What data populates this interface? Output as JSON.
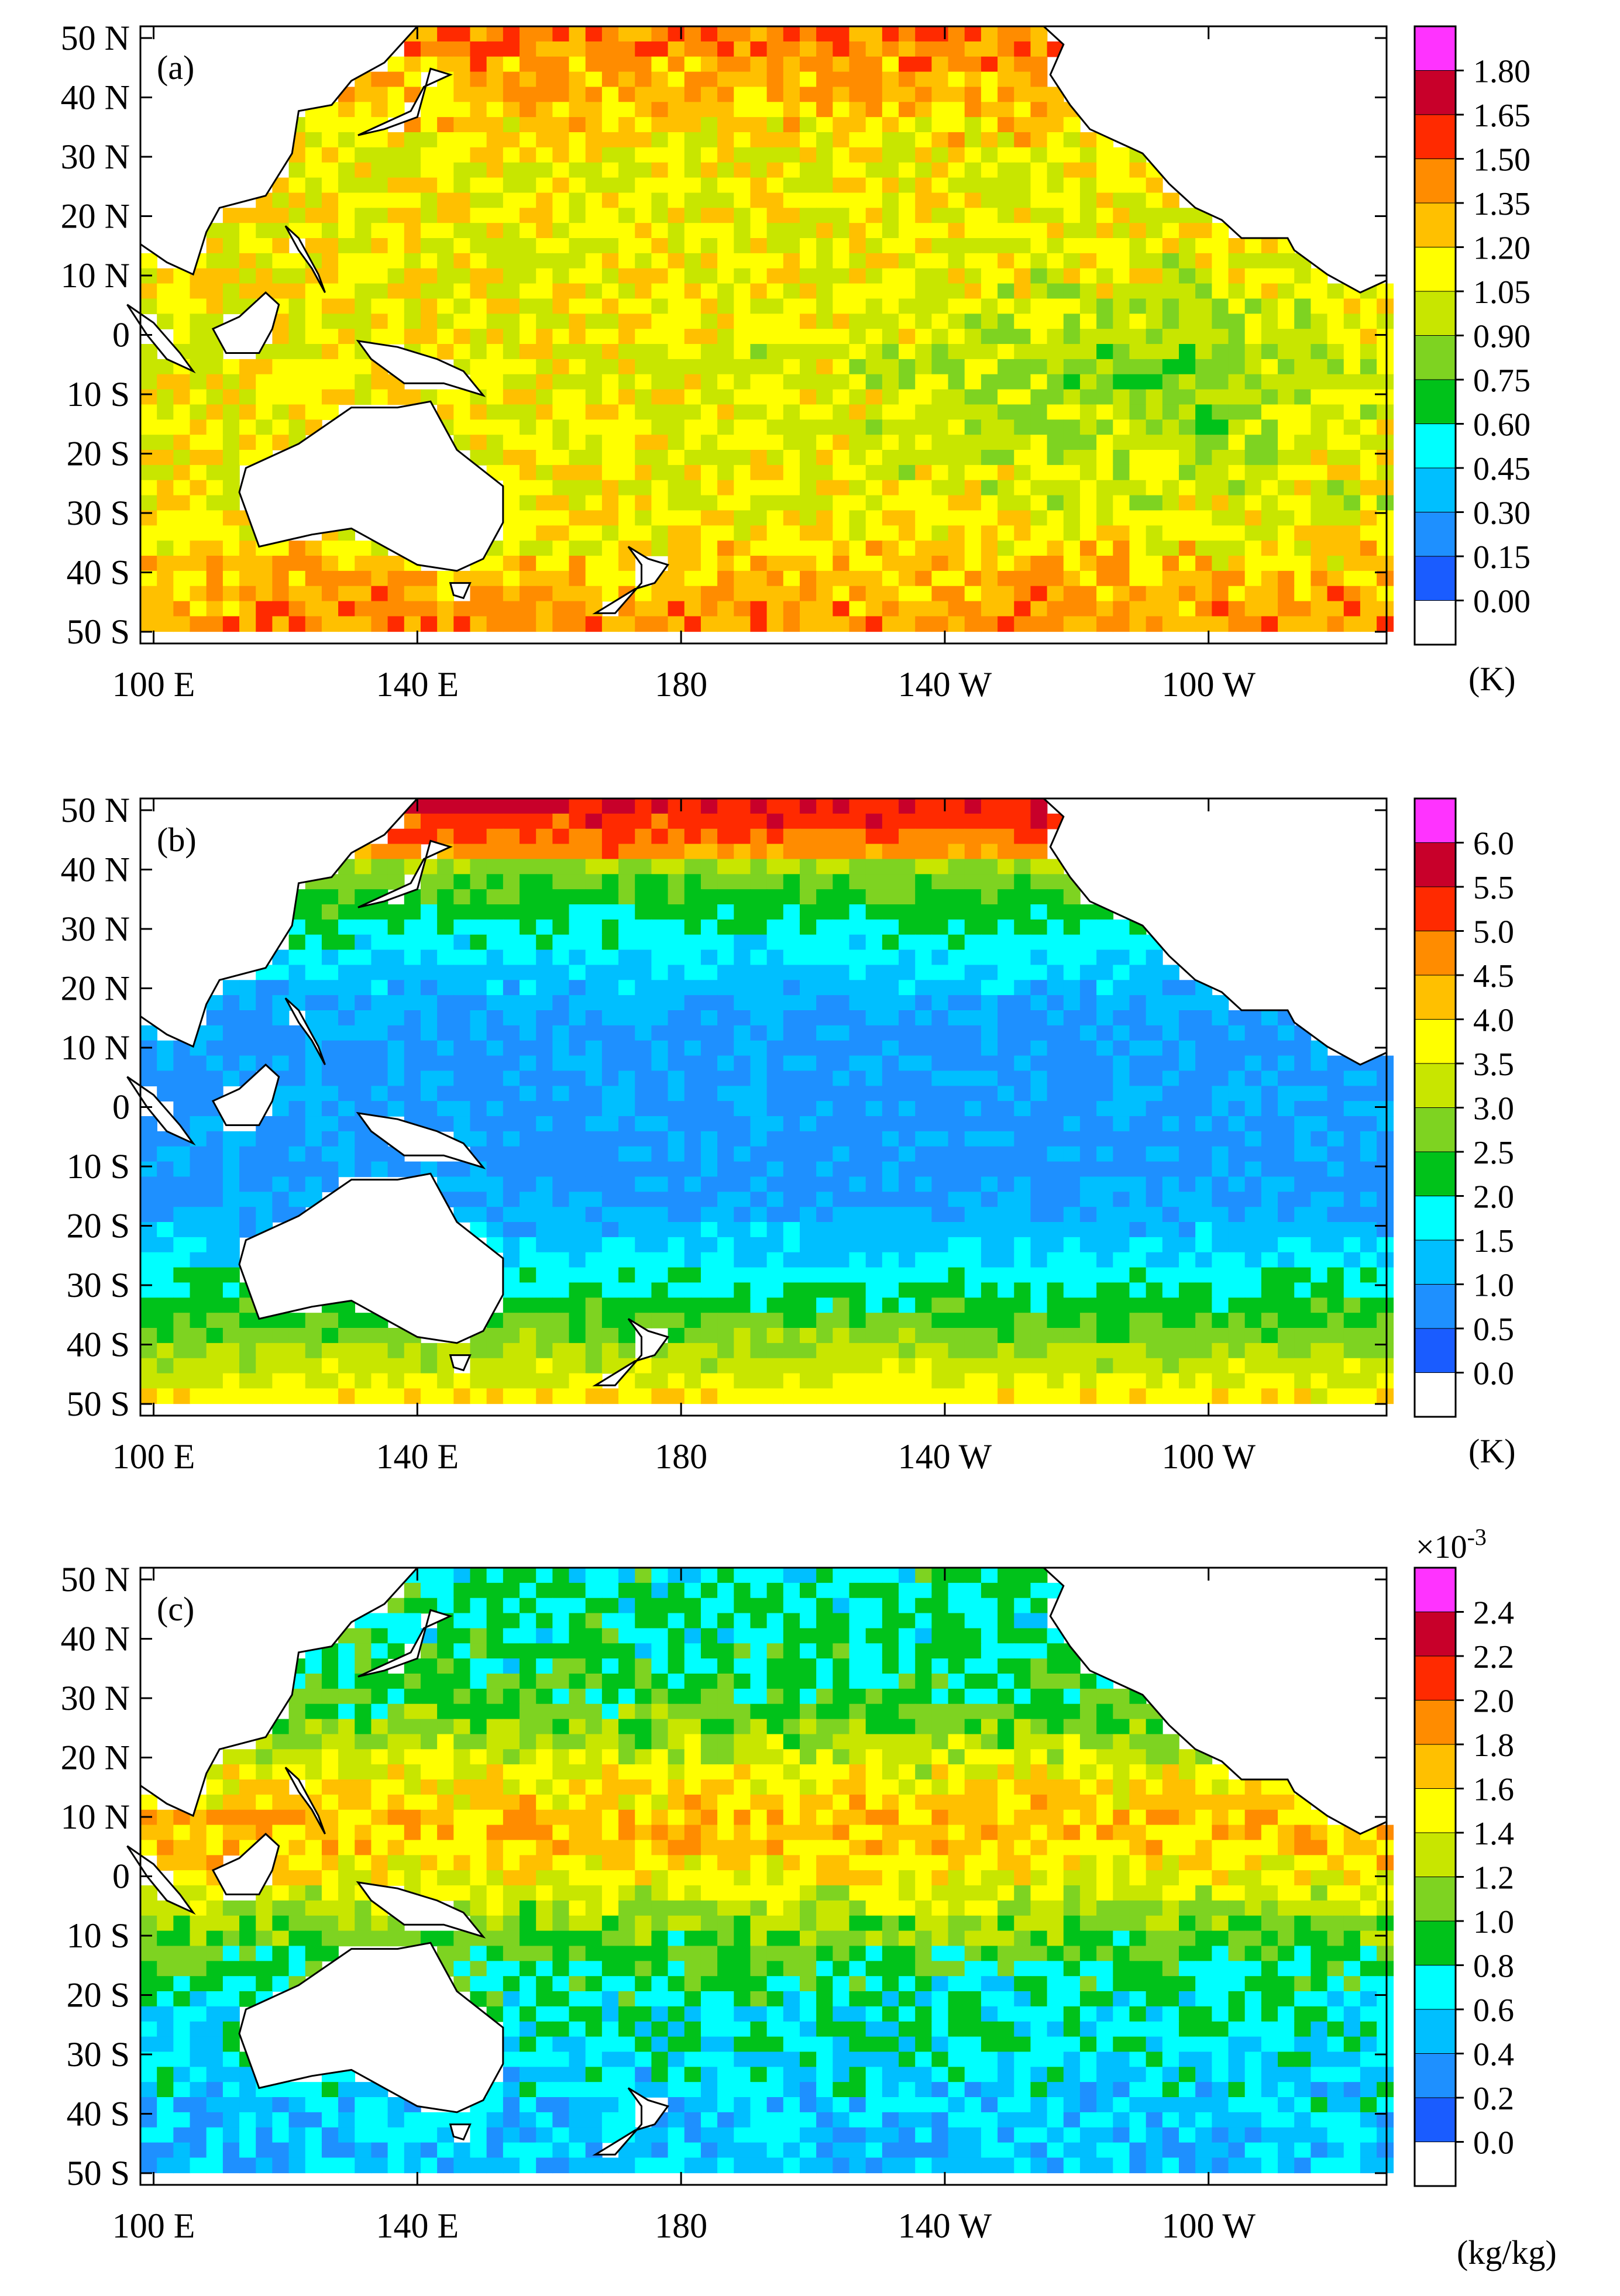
{
  "axes": {
    "lat_labels": [
      "50 N",
      "40 N",
      "30 N",
      "20 N",
      "10 N",
      "0",
      "10 S",
      "20 S",
      "30 S",
      "40 S",
      "50 S"
    ],
    "lon_labels": [
      "100 E",
      "140 E",
      "180",
      "140 W",
      "100 W"
    ]
  },
  "panels": [
    {
      "label": "(a)",
      "unit": "(K)",
      "multiplier": "",
      "colorbar_ticks": [
        "1.80",
        "1.65",
        "1.50",
        "1.35",
        "1.20",
        "1.05",
        "0.90",
        "0.75",
        "0.60",
        "0.45",
        "0.30",
        "0.15",
        "0.00"
      ]
    },
    {
      "label": "(b)",
      "unit": "(K)",
      "multiplier": "",
      "colorbar_ticks": [
        "6.0",
        "5.5",
        "5.0",
        "4.5",
        "4.0",
        "3.5",
        "3.0",
        "2.5",
        "2.0",
        "1.5",
        "1.0",
        "0.5",
        "0.0"
      ]
    },
    {
      "label": "(c)",
      "unit": "(kg/kg)",
      "multiplier": "×10",
      "multiplier_exp": "-3",
      "colorbar_ticks": [
        "2.4",
        "2.2",
        "2.0",
        "1.8",
        "1.6",
        "1.4",
        "1.2",
        "1.0",
        "0.8",
        "0.6",
        "0.4",
        "0.2",
        "0.0"
      ]
    }
  ],
  "colorbar_colors": [
    "#ffffff",
    "#1a5cff",
    "#1e90ff",
    "#00bfff",
    "#00ffff",
    "#00c21a",
    "#7ed321",
    "#c8e600",
    "#ffff00",
    "#ffc000",
    "#ff8c00",
    "#ff2a00",
    "#c8002a",
    "#ff33ff"
  ],
  "map_colors": {
    "land": "#ffffff",
    "coast": "#000000"
  }
}
